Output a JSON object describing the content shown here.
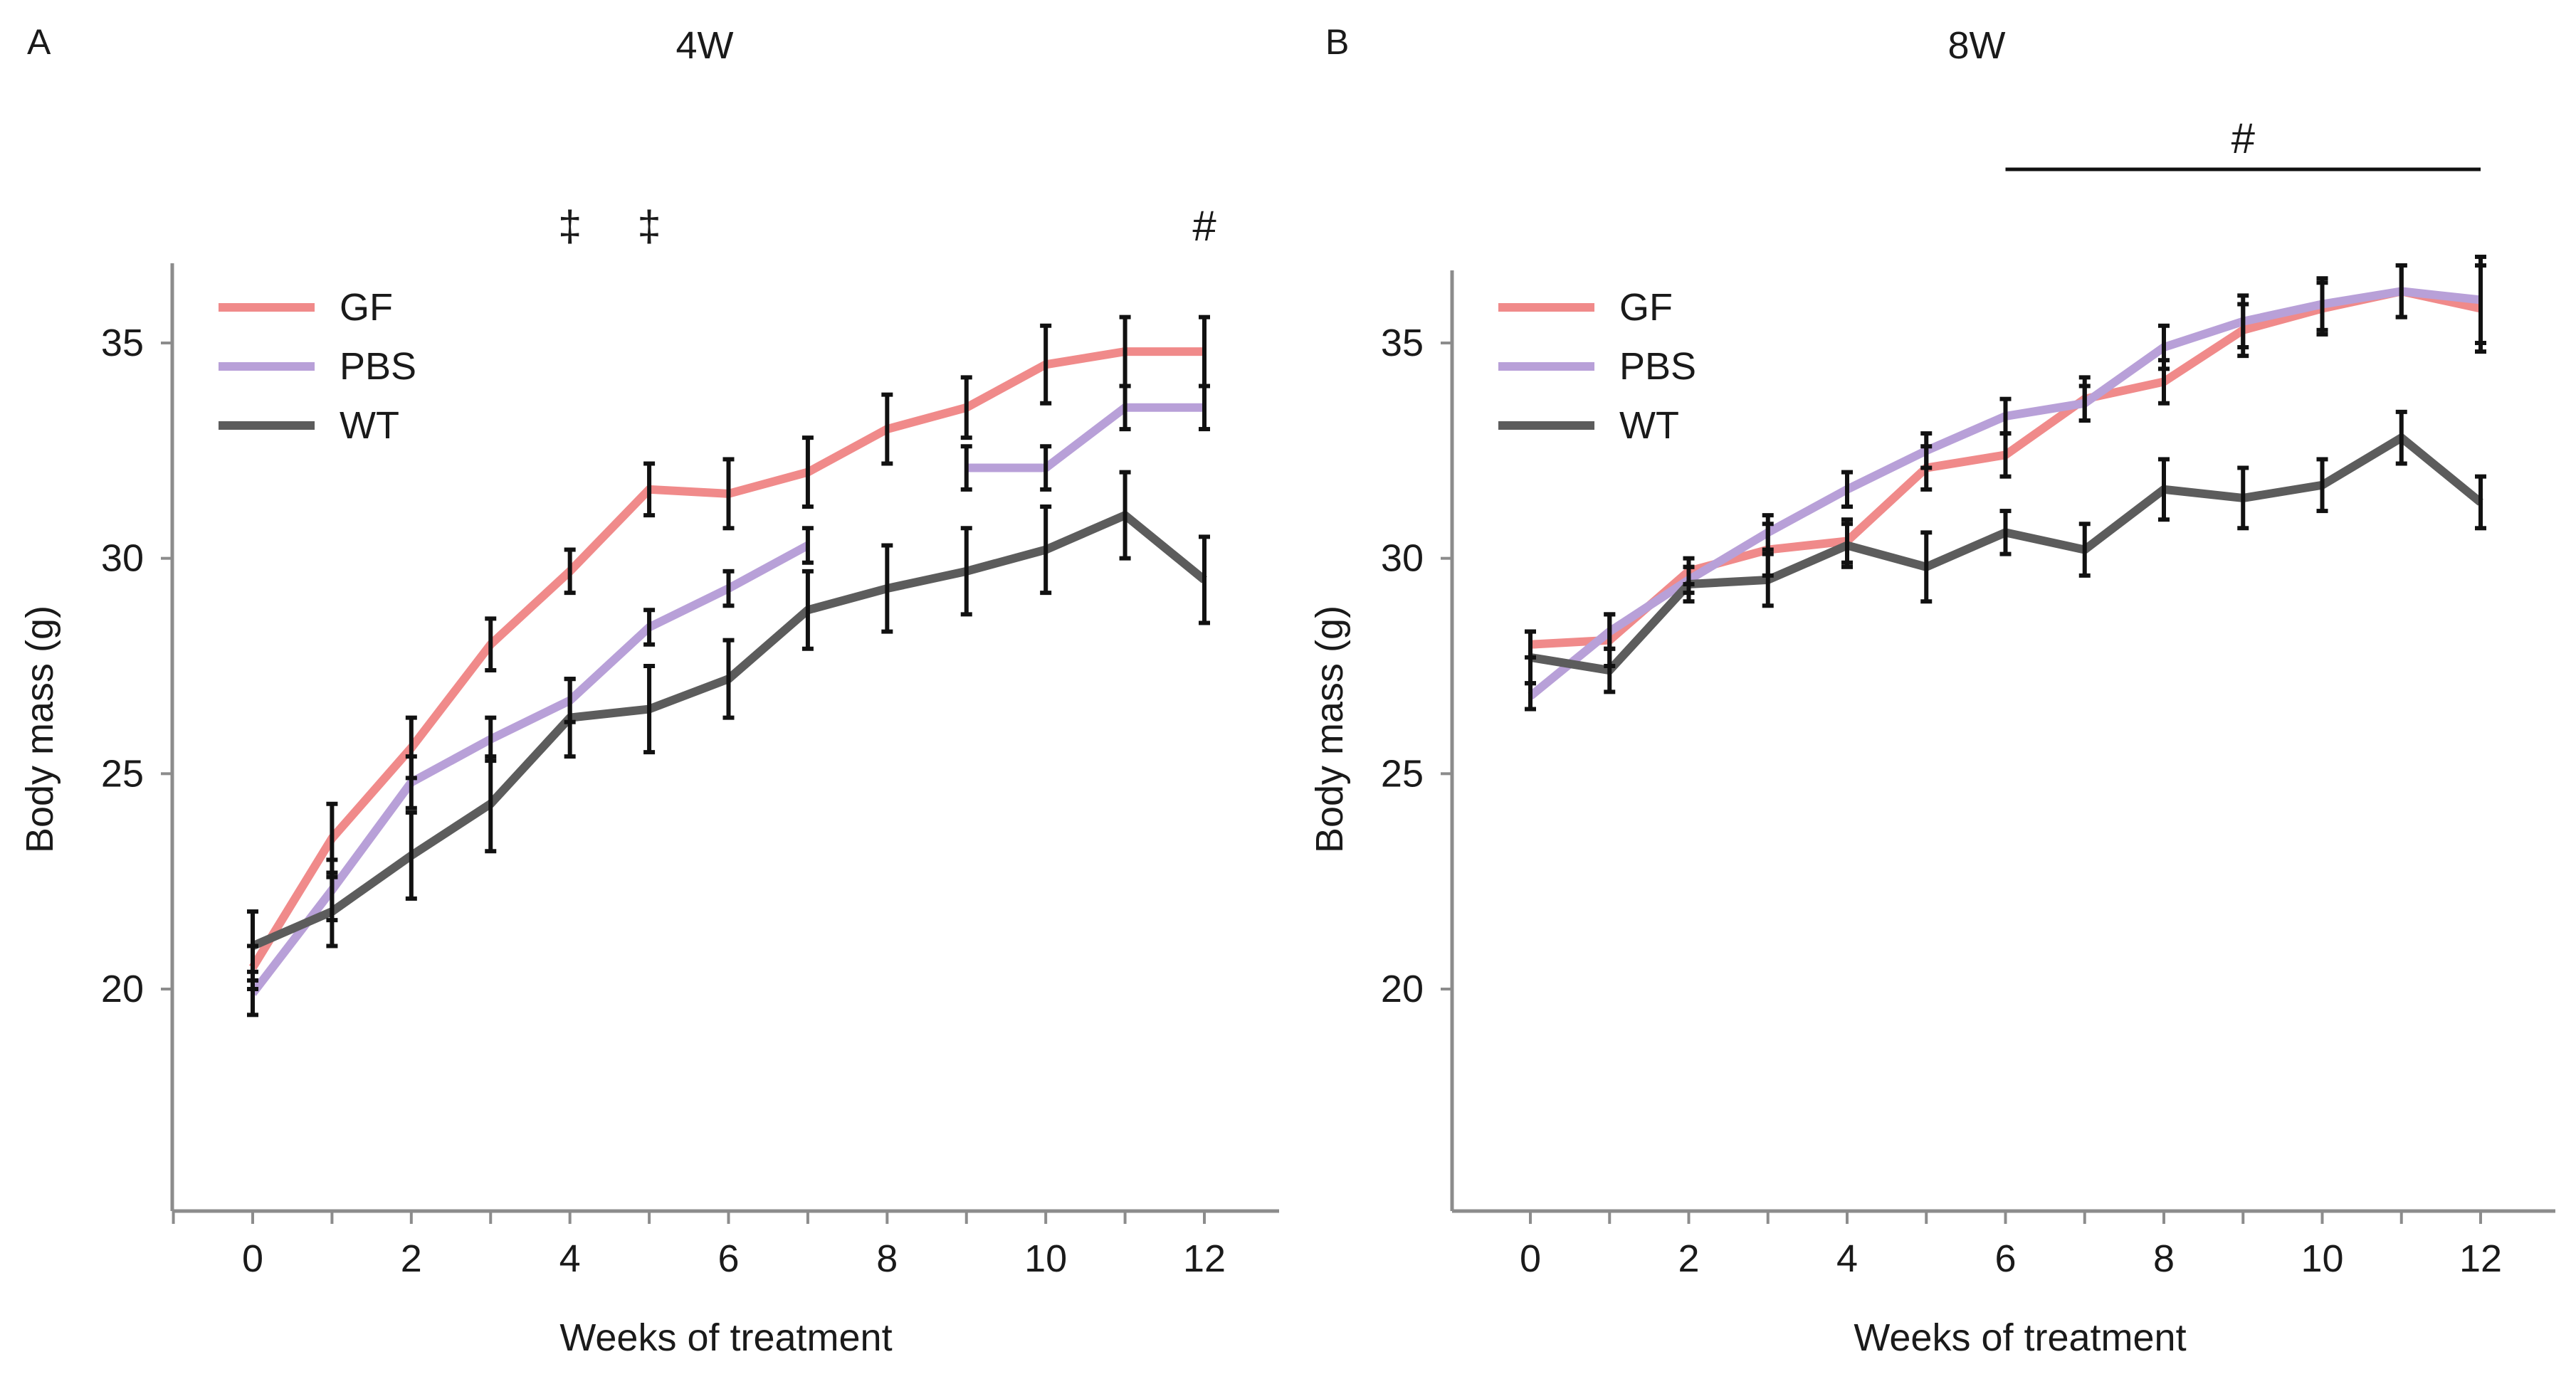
{
  "figure": {
    "panels": [
      {
        "letter": "A",
        "title": "4W",
        "xlabel": "Weeks of treatment",
        "ylabel": "Body mass (g)",
        "xticks": [
          0,
          2,
          4,
          6,
          8,
          10,
          12
        ],
        "yticks": [
          20,
          25,
          30,
          35
        ]
      },
      {
        "letter": "B",
        "title": "8W",
        "xlabel": "Weeks of treatment",
        "ylabel": "Body mass (g)",
        "xticks": [
          0,
          2,
          4,
          6,
          8,
          10,
          12
        ],
        "yticks": [
          20,
          25,
          30,
          35
        ]
      }
    ]
  },
  "chart_data": [
    {
      "type": "line",
      "title": "4W",
      "panel_label": "A",
      "xlabel": "Weeks of treatment",
      "ylabel": "Body mass (g)",
      "xlim": [
        -1,
        13
      ],
      "ylim": [
        15,
        37
      ],
      "legend_position": "top-left",
      "grid": false,
      "series": [
        {
          "name": "GF",
          "color": "#f08a8a",
          "x": [
            0,
            1,
            2,
            3,
            4,
            5,
            6,
            7,
            8,
            9,
            10,
            11,
            12
          ],
          "y": [
            20.5,
            23.5,
            25.6,
            28.0,
            29.7,
            31.6,
            31.5,
            32.0,
            33.0,
            33.5,
            34.5,
            34.8,
            34.8
          ],
          "err": [
            0.5,
            0.8,
            0.7,
            0.6,
            0.5,
            0.6,
            0.8,
            0.8,
            0.8,
            0.7,
            0.9,
            0.8,
            0.8
          ]
        },
        {
          "name": "PBS",
          "color": "#b8a0d8",
          "x": [
            0,
            1,
            2,
            3,
            4,
            5,
            6,
            7,
            null,
            9,
            10,
            11,
            12
          ],
          "y": [
            19.9,
            22.3,
            24.8,
            25.8,
            26.7,
            28.4,
            29.3,
            30.3,
            null,
            32.1,
            32.1,
            33.5,
            33.5
          ],
          "err": [
            0.5,
            0.7,
            0.6,
            0.5,
            0.5,
            0.4,
            0.4,
            0.4,
            null,
            0.5,
            0.5,
            0.5,
            0.5
          ]
        },
        {
          "name": "WT",
          "color": "#5c5c5c",
          "x": [
            0,
            1,
            2,
            3,
            4,
            5,
            6,
            7,
            8,
            9,
            10,
            11,
            12
          ],
          "y": [
            21.0,
            21.8,
            23.1,
            24.3,
            26.3,
            26.5,
            27.2,
            28.8,
            29.3,
            29.7,
            30.2,
            31.0,
            29.5
          ],
          "err": [
            0.8,
            0.8,
            1.0,
            1.1,
            0.9,
            1.0,
            0.9,
            0.9,
            1.0,
            1.0,
            1.0,
            1.0,
            1.0
          ]
        }
      ],
      "annotations": [
        {
          "text": "‡",
          "x": 4
        },
        {
          "text": "‡",
          "x": 5
        },
        {
          "text": "#",
          "x": 12
        }
      ]
    },
    {
      "type": "line",
      "title": "8W",
      "panel_label": "B",
      "xlabel": "Weeks of treatment",
      "ylabel": "Body mass (g)",
      "xlim": [
        -1,
        13
      ],
      "ylim": [
        15,
        37
      ],
      "legend_position": "top-left",
      "grid": false,
      "series": [
        {
          "name": "GF",
          "color": "#f08a8a",
          "x": [
            0,
            1,
            2,
            3,
            4,
            5,
            6,
            7,
            8,
            9,
            10,
            11,
            12
          ],
          "y": [
            28.0,
            28.1,
            29.7,
            30.2,
            30.4,
            32.1,
            32.4,
            33.7,
            34.1,
            35.3,
            35.8,
            36.2,
            35.8
          ],
          "err": [
            0.3,
            0.6,
            0.3,
            0.6,
            0.5,
            0.5,
            0.5,
            0.5,
            0.5,
            0.6,
            0.6,
            0.6,
            1.0
          ]
        },
        {
          "name": "PBS",
          "color": "#b8a0d8",
          "x": [
            0,
            1,
            2,
            3,
            4,
            5,
            6,
            7,
            8,
            9,
            10,
            11,
            12
          ],
          "y": [
            26.8,
            28.3,
            29.5,
            30.6,
            31.6,
            32.5,
            33.3,
            33.6,
            34.9,
            35.5,
            35.9,
            36.2,
            36.0
          ],
          "err": [
            0.3,
            0.4,
            0.3,
            0.4,
            0.4,
            0.4,
            0.4,
            0.4,
            0.5,
            0.6,
            0.6,
            0.6,
            1.0
          ]
        },
        {
          "name": "WT",
          "color": "#5c5c5c",
          "x": [
            0,
            1,
            2,
            3,
            4,
            5,
            6,
            7,
            8,
            9,
            10,
            11,
            12
          ],
          "y": [
            27.7,
            27.4,
            29.4,
            29.5,
            30.3,
            29.8,
            30.6,
            30.2,
            31.6,
            31.4,
            31.7,
            32.8,
            31.3
          ],
          "err": [
            0.6,
            0.5,
            0.4,
            0.6,
            0.5,
            0.8,
            0.5,
            0.6,
            0.7,
            0.7,
            0.6,
            0.6,
            0.6
          ]
        }
      ],
      "annotations": [
        {
          "text": "#",
          "x_start": 6,
          "x_end": 12
        }
      ]
    }
  ]
}
